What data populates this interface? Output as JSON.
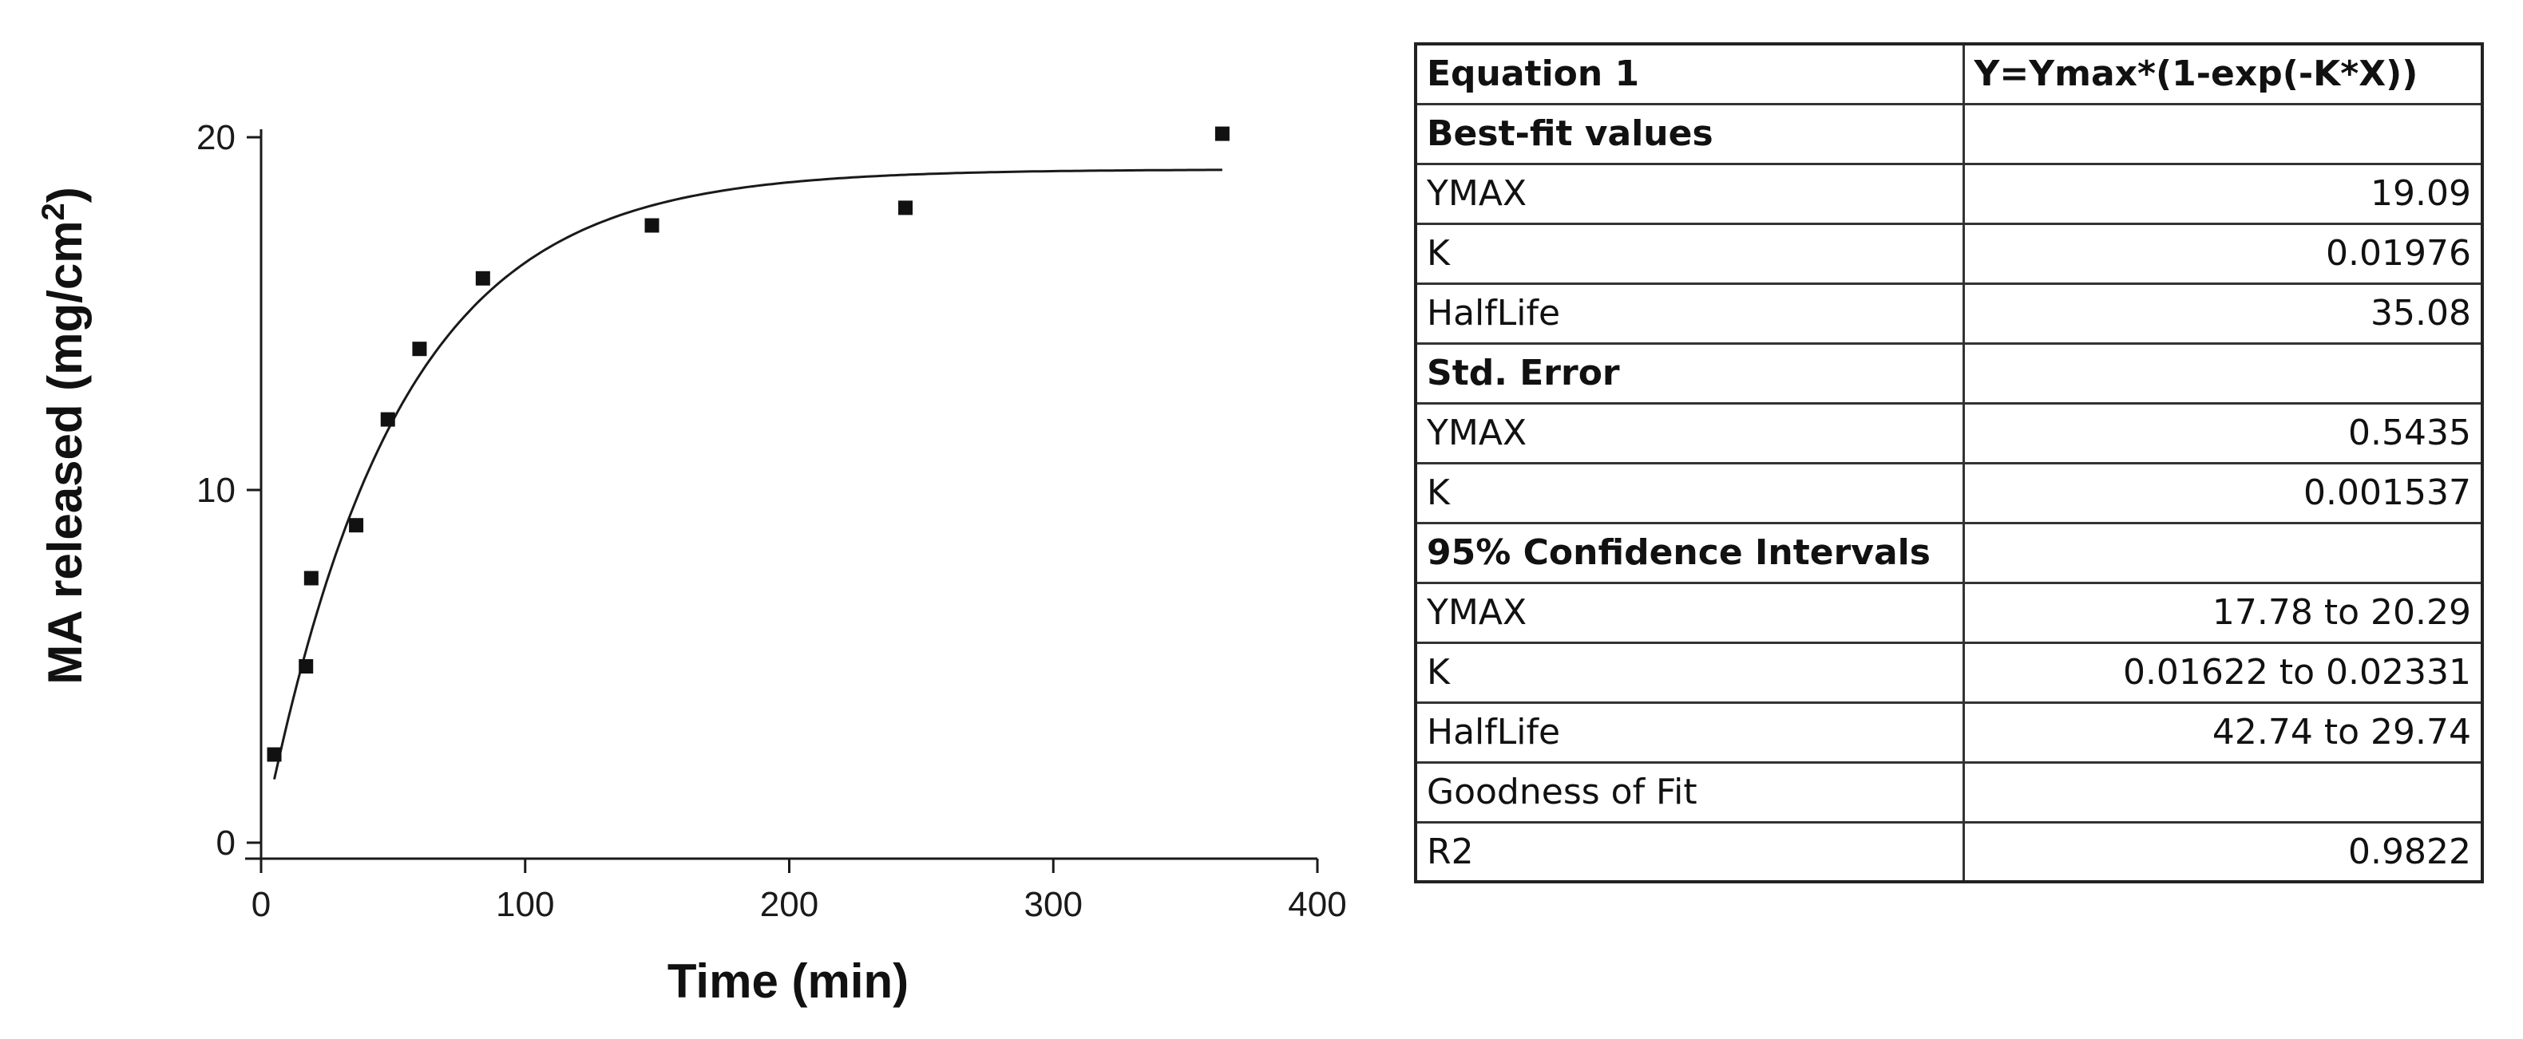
{
  "chart_data": {
    "type": "scatter",
    "xlabel": "Time (min)",
    "ylabel": "MA released (mg/cm",
    "ylabel_superscript": "2",
    "ylabel_close": ")",
    "xlim": [
      0,
      400
    ],
    "ylim": [
      0,
      20
    ],
    "x_ticks": [
      "0",
      "100",
      "200",
      "300",
      "400"
    ],
    "y_ticks": [
      "0",
      "10",
      "20"
    ],
    "grid": false,
    "series": [
      {
        "points": [
          {
            "x": 5,
            "y": 2.5
          },
          {
            "x": 17,
            "y": 5
          },
          {
            "x": 19,
            "y": 7.5
          },
          {
            "x": 36,
            "y": 9
          },
          {
            "x": 48,
            "y": 12
          },
          {
            "x": 60,
            "y": 14
          },
          {
            "x": 84,
            "y": 16
          },
          {
            "x": 148,
            "y": 17.5
          },
          {
            "x": 244,
            "y": 18
          },
          {
            "x": 364,
            "y": 20.1
          }
        ]
      }
    ],
    "fit": {
      "equation": "Y=Ymax*(1-exp(-K*X))",
      "ymax": 19.09,
      "k": 0.01976,
      "x_range": [
        5,
        364
      ]
    }
  },
  "table": {
    "rows": [
      {
        "label": "Equation 1",
        "value": "Y=Ymax*(1-exp(-K*X))",
        "bold": true
      },
      {
        "label": "Best-fit values",
        "value": "",
        "bold": true
      },
      {
        "label": "YMAX",
        "value": "19.09",
        "bold": false
      },
      {
        "label": "K",
        "value": "0.01976",
        "bold": false
      },
      {
        "label": "HalfLife",
        "value": "35.08",
        "bold": false
      },
      {
        "label": "Std. Error",
        "value": "",
        "bold": true
      },
      {
        "label": "YMAX",
        "value": "0.5435",
        "bold": false
      },
      {
        "label": "K",
        "value": "0.001537",
        "bold": false
      },
      {
        "label": "95% Confidence Intervals",
        "value": "",
        "bold": true
      },
      {
        "label": "YMAX",
        "value": "17.78 to 20.29",
        "bold": false
      },
      {
        "label": "K",
        "value": "0.01622 to 0.02331",
        "bold": false
      },
      {
        "label": "HalfLife",
        "value": "42.74 to 29.74",
        "bold": false
      },
      {
        "label": "Goodness of Fit",
        "value": "",
        "bold": false
      },
      {
        "label": "R2",
        "value": "0.9822",
        "bold": false
      }
    ]
  }
}
